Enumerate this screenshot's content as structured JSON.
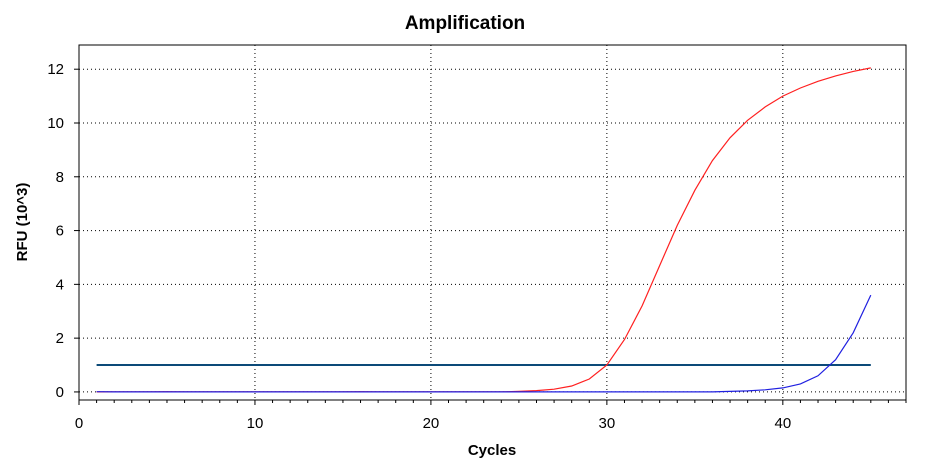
{
  "chart_data": {
    "type": "line",
    "title": "Amplification",
    "xlabel": "Cycles",
    "ylabel": "RFU (10^3)",
    "xlim": [
      0,
      47
    ],
    "ylim": [
      -0.3,
      12.9
    ],
    "x_ticks": [
      0,
      10,
      20,
      30,
      40
    ],
    "y_ticks": [
      0,
      2,
      4,
      6,
      8,
      10,
      12
    ],
    "x_tick_labels": [
      "0",
      "10",
      "20",
      "30",
      "40"
    ],
    "y_tick_labels": [
      "0",
      "2",
      "4",
      "6",
      "8",
      "10",
      "12"
    ],
    "grid": true,
    "threshold": {
      "name": "threshold",
      "value": 1.0,
      "x_range": [
        1,
        45
      ],
      "color": "#0c4a78"
    },
    "series": [
      {
        "name": "red-curve",
        "color": "#ff2020",
        "x": [
          1,
          2,
          3,
          4,
          5,
          6,
          7,
          8,
          9,
          10,
          11,
          12,
          13,
          14,
          15,
          16,
          17,
          18,
          19,
          20,
          21,
          22,
          23,
          24,
          25,
          26,
          27,
          28,
          29,
          30,
          31,
          32,
          33,
          34,
          35,
          36,
          37,
          38,
          39,
          40,
          41,
          42,
          43,
          44,
          45
        ],
        "values": [
          0.0,
          0.0,
          0.0,
          0.0,
          0.01,
          0.0,
          0.0,
          0.0,
          0.0,
          0.0,
          0.0,
          0.0,
          0.0,
          0.0,
          0.0,
          0.01,
          0.0,
          0.0,
          0.0,
          0.0,
          0.0,
          0.0,
          0.0,
          0.0,
          0.02,
          0.05,
          0.1,
          0.22,
          0.48,
          1.0,
          1.95,
          3.2,
          4.7,
          6.2,
          7.5,
          8.6,
          9.45,
          10.1,
          10.6,
          11.0,
          11.3,
          11.55,
          11.75,
          11.92,
          12.05
        ]
      },
      {
        "name": "blue-curve",
        "color": "#2020e0",
        "x": [
          1,
          2,
          3,
          4,
          5,
          6,
          7,
          8,
          9,
          10,
          11,
          12,
          13,
          14,
          15,
          16,
          17,
          18,
          19,
          20,
          21,
          22,
          23,
          24,
          25,
          26,
          27,
          28,
          29,
          30,
          31,
          32,
          33,
          34,
          35,
          36,
          37,
          38,
          39,
          40,
          41,
          42,
          43,
          44,
          45
        ],
        "values": [
          0.01,
          0.0,
          0.0,
          0.0,
          0.0,
          0.0,
          0.0,
          0.0,
          0.0,
          0.0,
          0.0,
          0.0,
          0.0,
          0.0,
          0.0,
          0.0,
          0.0,
          0.0,
          0.0,
          0.0,
          0.0,
          0.0,
          0.0,
          0.0,
          0.0,
          0.0,
          0.0,
          0.0,
          0.0,
          0.0,
          0.0,
          0.0,
          0.0,
          0.0,
          0.0,
          0.0,
          0.02,
          0.04,
          0.08,
          0.15,
          0.3,
          0.6,
          1.2,
          2.2,
          3.6
        ]
      }
    ]
  }
}
